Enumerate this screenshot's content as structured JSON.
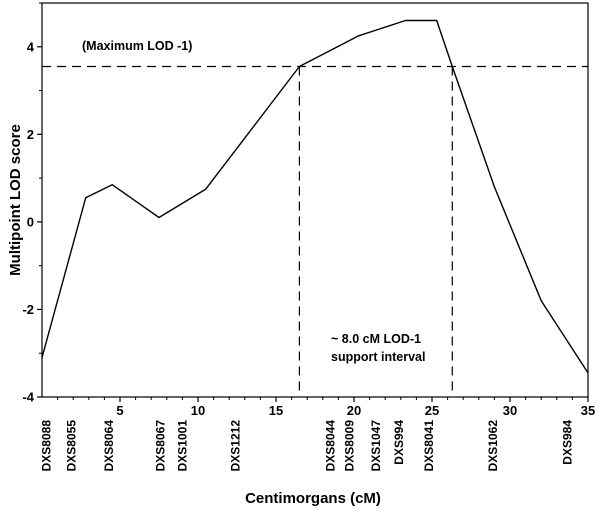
{
  "chart_data": {
    "type": "line",
    "xlabel": "Centimorgans (cM)",
    "ylabel": "Multipoint LOD score",
    "xlim": [
      0,
      35
    ],
    "ylim": [
      -4,
      5
    ],
    "x_ticks": [
      5,
      10,
      15,
      20,
      25,
      30,
      35
    ],
    "y_ticks": [
      -4,
      -2,
      0,
      2,
      4
    ],
    "series": [
      {
        "name": "Multipoint LOD score",
        "points": [
          [
            0,
            -3.1
          ],
          [
            2.8,
            0.55
          ],
          [
            4.5,
            0.85
          ],
          [
            7.5,
            0.1
          ],
          [
            10.5,
            0.75
          ],
          [
            16.5,
            3.55
          ],
          [
            20.3,
            4.25
          ],
          [
            23.3,
            4.6
          ],
          [
            25.3,
            4.6
          ],
          [
            26.3,
            3.55
          ],
          [
            29.0,
            0.8
          ],
          [
            32.0,
            -1.8
          ],
          [
            35.0,
            -3.45
          ]
        ]
      }
    ],
    "threshold_line": {
      "y": 3.55,
      "label": "(Maximum LOD -1)"
    },
    "support_interval": {
      "x_start": 16.5,
      "x_end": 26.3,
      "label_line1": "~ 8.0 cM LOD-1",
      "label_line2": "support interval"
    },
    "markers": [
      {
        "name": "DXS8088",
        "x": 0.3
      },
      {
        "name": "DXS8055",
        "x": 1.9
      },
      {
        "name": "DXS8064",
        "x": 4.3
      },
      {
        "name": "DXS8067",
        "x": 7.6
      },
      {
        "name": "DXS1001",
        "x": 9.0
      },
      {
        "name": "DXS1212",
        "x": 12.4
      },
      {
        "name": "DXS8044",
        "x": 18.5
      },
      {
        "name": "DXS8009",
        "x": 19.7
      },
      {
        "name": "DXS1047",
        "x": 21.4
      },
      {
        "name": "DXS994",
        "x": 22.9
      },
      {
        "name": "DXS8041",
        "x": 24.8
      },
      {
        "name": "DXS1062",
        "x": 28.9
      },
      {
        "name": "DXS984",
        "x": 33.7
      }
    ]
  }
}
